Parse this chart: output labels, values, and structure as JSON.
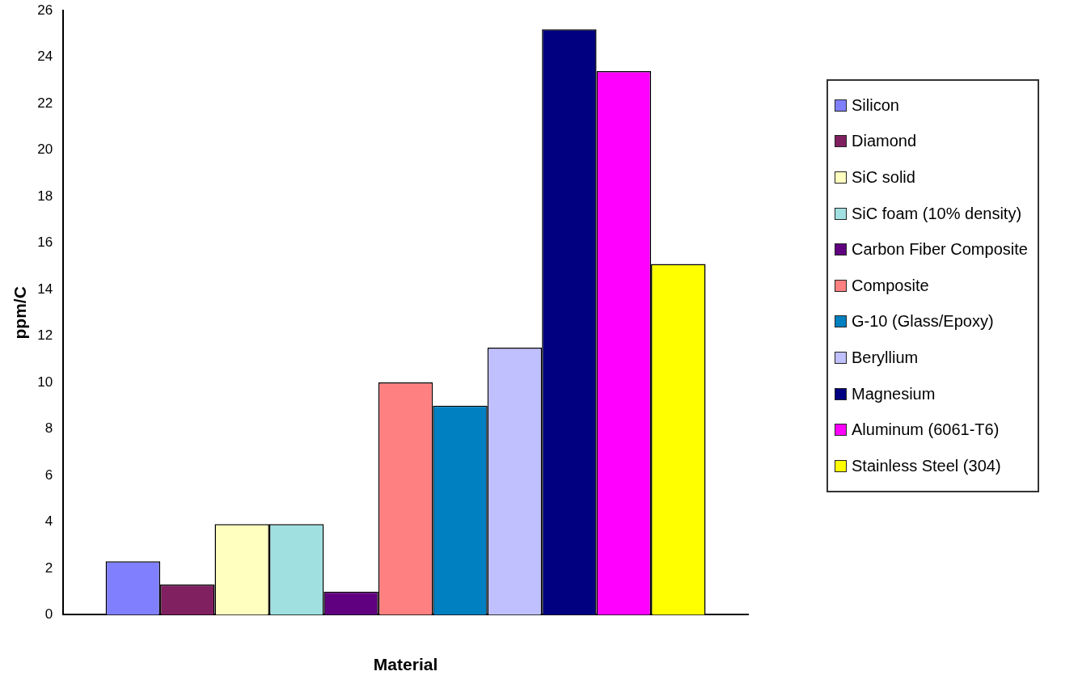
{
  "chart_data": {
    "type": "bar",
    "xlabel": "Material",
    "ylabel": "ppm/C",
    "categories": [
      null
    ],
    "series": [
      {
        "name": "Silicon",
        "color": "#8080ff",
        "values": [
          2.3
        ]
      },
      {
        "name": "Diamond",
        "color": "#802060",
        "values": [
          1.3
        ]
      },
      {
        "name": "SiC solid",
        "color": "#ffffc0",
        "values": [
          3.9
        ]
      },
      {
        "name": "SiC foam (10% density)",
        "color": "#a0e0e0",
        "values": [
          3.9
        ]
      },
      {
        "name": "Carbon Fiber Composite",
        "color": "#600080",
        "values": [
          1.0
        ]
      },
      {
        "name": "Composite",
        "color": "#ff8080",
        "values": [
          10.0
        ]
      },
      {
        "name": "G-10 (Glass/Epoxy)",
        "color": "#0080c0",
        "values": [
          9.0
        ]
      },
      {
        "name": "Beryllium",
        "color": "#c0c0ff",
        "values": [
          11.5
        ]
      },
      {
        "name": "Magnesium",
        "color": "#000080",
        "values": [
          25.2
        ]
      },
      {
        "name": "Aluminum (6061-T6)",
        "color": "#ff00ff",
        "values": [
          23.4
        ]
      },
      {
        "name": "Stainless Steel (304)",
        "color": "#ffff00",
        "values": [
          15.1
        ]
      }
    ],
    "ylim": [
      0,
      26
    ],
    "yticks": [
      0,
      2,
      4,
      6,
      8,
      10,
      12,
      14,
      16,
      18,
      20,
      22,
      24,
      26
    ],
    "grid": false,
    "legend": "right"
  }
}
